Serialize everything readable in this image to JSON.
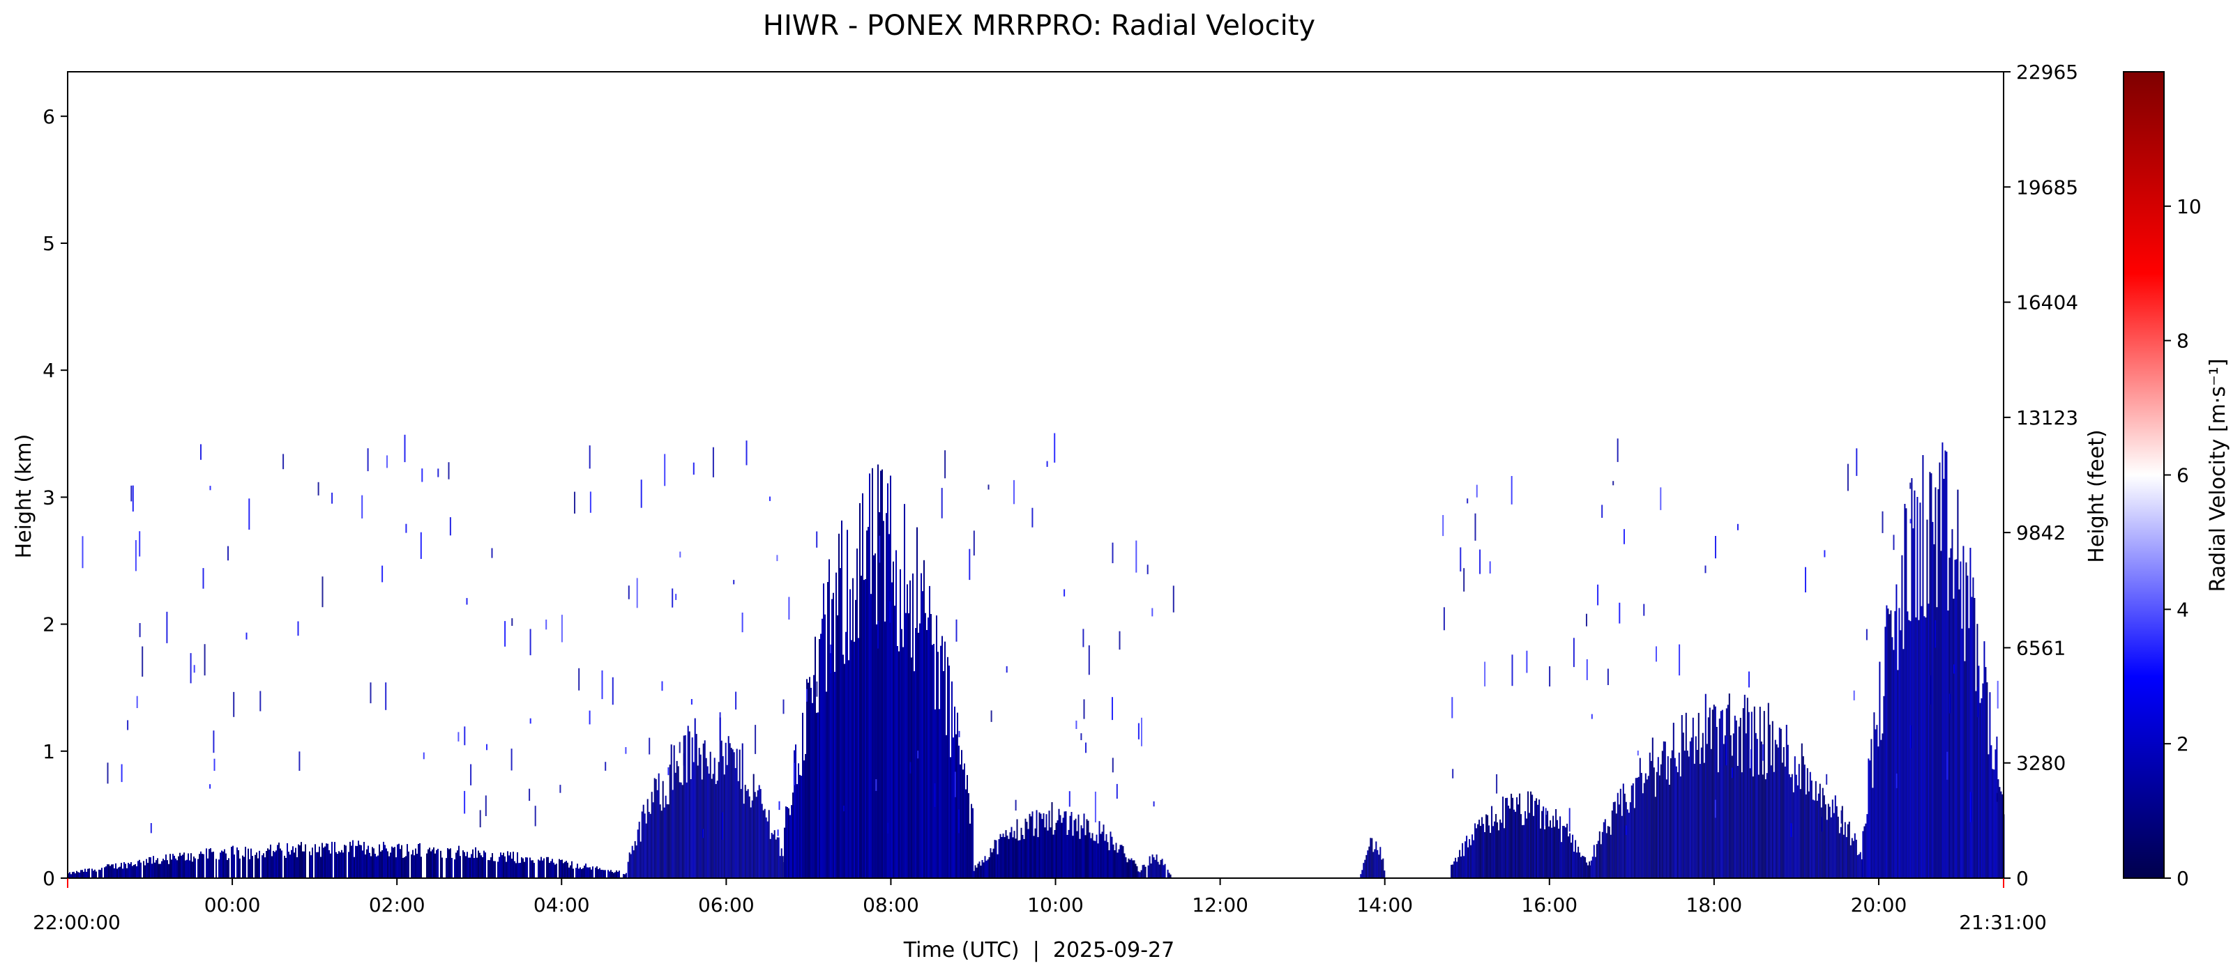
{
  "chart_data": {
    "type": "heatmap",
    "title": "HIWR - PONEX MRRPRO: Radial Velocity",
    "xlabel": "Time (UTC)  |  2025-09-27",
    "ylabel": "Height (km)",
    "ylabel_right": "Height (feet)",
    "colorbar_label": "Radial Velocity [m·s⁻¹]",
    "colormap": "seismic",
    "x_start_label": "22:00:00",
    "x_end_label": "21:31:00",
    "x_range_hours": [
      -2.0,
      21.5167
    ],
    "x_ticks": [
      {
        "h": 0,
        "label": "00:00"
      },
      {
        "h": 2,
        "label": "02:00"
      },
      {
        "h": 4,
        "label": "04:00"
      },
      {
        "h": 6,
        "label": "06:00"
      },
      {
        "h": 8,
        "label": "08:00"
      },
      {
        "h": 10,
        "label": "10:00"
      },
      {
        "h": 12,
        "label": "12:00"
      },
      {
        "h": 14,
        "label": "14:00"
      },
      {
        "h": 16,
        "label": "16:00"
      },
      {
        "h": 18,
        "label": "18:00"
      },
      {
        "h": 20,
        "label": "20:00"
      }
    ],
    "ylim_km": [
      0,
      6.35
    ],
    "y_ticks_km": [
      "0",
      "1",
      "2",
      "3",
      "4",
      "5",
      "6"
    ],
    "y_ticks_feet": [
      "0",
      "3280",
      "6561",
      "9842",
      "13123",
      "16404",
      "19685",
      "22965"
    ],
    "colorbar_range": [
      0,
      12
    ],
    "colorbar_ticks": [
      "0",
      "2",
      "4",
      "6",
      "8",
      "10"
    ],
    "echo_regions": [
      {
        "h_start": -2.0,
        "h_end": 4.8,
        "max_height_km": 0.3,
        "mean_velocity": 1.0
      },
      {
        "h_start": 4.8,
        "h_end": 6.7,
        "max_height_km": 1.3,
        "mean_velocity": 1.2
      },
      {
        "h_start": 6.7,
        "h_end": 9.0,
        "max_height_km": 3.3,
        "mean_velocity": 1.3
      },
      {
        "h_start": 9.0,
        "h_end": 11.0,
        "max_height_km": 0.6,
        "mean_velocity": 1.0
      },
      {
        "h_start": 11.0,
        "h_end": 11.4,
        "max_height_km": 0.2,
        "mean_velocity": 1.0
      },
      {
        "h_start": 13.7,
        "h_end": 14.0,
        "max_height_km": 0.35,
        "mean_velocity": 1.0
      },
      {
        "h_start": 14.8,
        "h_end": 16.5,
        "max_height_km": 0.7,
        "mean_velocity": 1.0
      },
      {
        "h_start": 16.5,
        "h_end": 19.8,
        "max_height_km": 1.5,
        "mean_velocity": 1.1
      },
      {
        "h_start": 19.8,
        "h_end": 21.5167,
        "max_height_km": 3.5,
        "mean_velocity": 1.4
      }
    ]
  }
}
